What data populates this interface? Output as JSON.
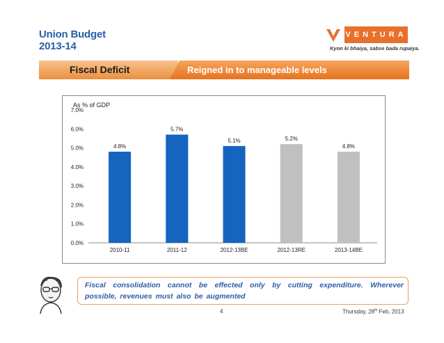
{
  "header": {
    "title_line1": "Union Budget",
    "title_line2": "2013-14",
    "logo_text": "VENTURA",
    "tagline": "Kyon ki bhaiya, sabse bada rupaiya."
  },
  "banner": {
    "left": "Fiscal Deficit",
    "right": "Reigned in to manageable levels"
  },
  "chart_data": {
    "type": "bar",
    "title": "",
    "ylabel": "As % of GDP",
    "xlabel": "",
    "categories": [
      "2010-11",
      "2011-12",
      "2012-13BE",
      "2012-13RE",
      "2013-14BE"
    ],
    "values": [
      4.8,
      5.7,
      5.1,
      5.2,
      4.8
    ],
    "data_labels": [
      "4.8%",
      "5.7%",
      "5.1%",
      "5.2%",
      "4.8%"
    ],
    "bar_colors": [
      "#1565c0",
      "#1565c0",
      "#1565c0",
      "#c0c0c0",
      "#c0c0c0"
    ],
    "ylim": [
      0,
      7
    ],
    "yticks": [
      "0.0%",
      "1.0%",
      "2.0%",
      "3.0%",
      "4.0%",
      "5.0%",
      "6.0%",
      "7.0%"
    ],
    "grid": false,
    "legend": "none"
  },
  "quote": {
    "text": "Fiscal consolidation cannot be effected only by cutting expenditure. Wherever possible, revenues must also be augmented"
  },
  "footer": {
    "page_number": "4",
    "date_prefix": "Thursday, 28",
    "date_suffix": "th",
    "date_rest": " Feb, 2013"
  }
}
